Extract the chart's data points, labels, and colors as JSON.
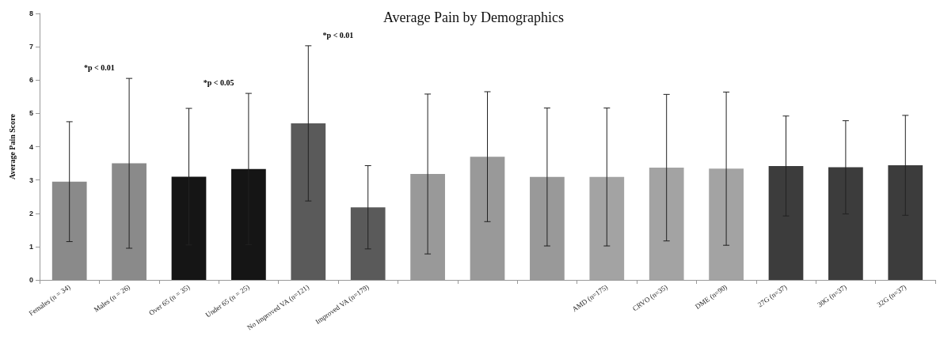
{
  "chart_data": {
    "type": "bar",
    "title": "Average Pain by Demographics",
    "ylabel": "Average Pain Score",
    "categories": [
      "Females (n = 34)",
      "Males (n = 26)",
      "Over 65 (n = 35)",
      "Under 65 (n = 25)",
      "No Improved VA (n=121)",
      "Improved VA (n=179)",
      null,
      null,
      null,
      "AMD (n=175)",
      "CRVO (n=35)",
      "DME (n=90)",
      "27G (n=37)",
      "30G (n=37)",
      "32G (n=37)"
    ],
    "values": [
      2.95,
      3.5,
      3.1,
      3.33,
      4.7,
      2.18,
      3.18,
      3.7,
      3.09,
      3.09,
      3.37,
      3.34,
      3.42,
      3.38,
      3.44
    ],
    "errors": [
      1.8,
      2.55,
      2.05,
      2.27,
      2.33,
      1.25,
      2.4,
      1.95,
      2.07,
      2.07,
      2.2,
      2.3,
      1.5,
      1.4,
      1.5
    ],
    "colors": [
      "#8a8a8a",
      "#8a8a8a",
      "#151515",
      "#151515",
      "#5a5a5a",
      "#5a5a5a",
      "#999999",
      "#999999",
      "#999999",
      "#a3a3a3",
      "#a3a3a3",
      "#a3a3a3",
      "#3c3c3c",
      "#3c3c3c",
      "#3c3c3c"
    ],
    "ylim": [
      0,
      8
    ],
    "yticks": [
      0,
      1,
      2,
      3,
      4,
      5,
      6,
      7,
      8
    ],
    "annotations": [
      "*p < 0.01",
      "*p < 0.05",
      "*p < 0.01"
    ]
  }
}
